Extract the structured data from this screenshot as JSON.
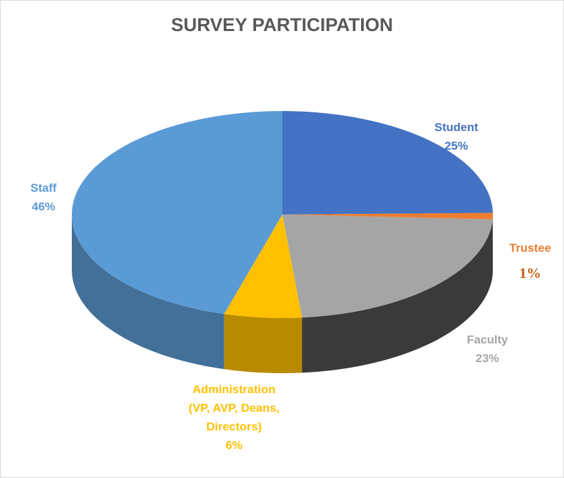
{
  "chart_data": {
    "type": "pie",
    "title": "SURVEY PARTICIPATION",
    "categories": [
      "Student",
      "Trustee",
      "Faculty",
      "Administration (VP, AVP, Deans, Directors)",
      "Staff"
    ],
    "values": [
      25,
      1,
      23,
      6,
      46
    ],
    "value_labels": [
      "25%",
      "1%",
      "23%",
      "6%",
      "46%"
    ],
    "colors": [
      "#4472c4",
      "#ed7d31",
      "#a5a5a5",
      "#ffc000",
      "#5b9bd5"
    ]
  }
}
